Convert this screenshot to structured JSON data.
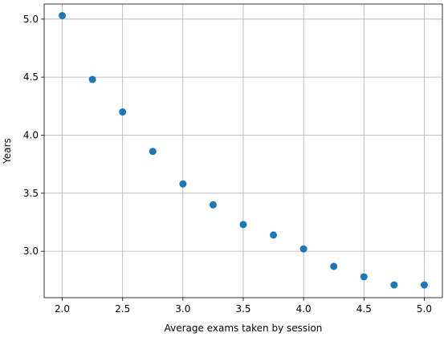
{
  "chart_data": {
    "type": "scatter",
    "title": "",
    "xlabel": "Average exams taken by session",
    "ylabel": "Years",
    "xlim": [
      1.85,
      5.15
    ],
    "ylim": [
      2.6,
      5.13
    ],
    "grid": true,
    "marker_color": "#1f77b4",
    "x_ticks": [
      "2.0",
      "2.5",
      "3.0",
      "3.5",
      "4.0",
      "4.5",
      "5.0"
    ],
    "y_ticks": [
      "3.0",
      "3.5",
      "4.0",
      "4.5",
      "5.0"
    ],
    "points": [
      {
        "x": 2.0,
        "y": 5.03
      },
      {
        "x": 2.25,
        "y": 4.48
      },
      {
        "x": 2.5,
        "y": 4.2
      },
      {
        "x": 2.75,
        "y": 3.86
      },
      {
        "x": 3.0,
        "y": 3.58
      },
      {
        "x": 3.25,
        "y": 3.4
      },
      {
        "x": 3.5,
        "y": 3.23
      },
      {
        "x": 3.75,
        "y": 3.14
      },
      {
        "x": 4.0,
        "y": 3.02
      },
      {
        "x": 4.25,
        "y": 2.87
      },
      {
        "x": 4.5,
        "y": 2.78
      },
      {
        "x": 4.75,
        "y": 2.71
      },
      {
        "x": 5.0,
        "y": 2.71
      }
    ]
  }
}
